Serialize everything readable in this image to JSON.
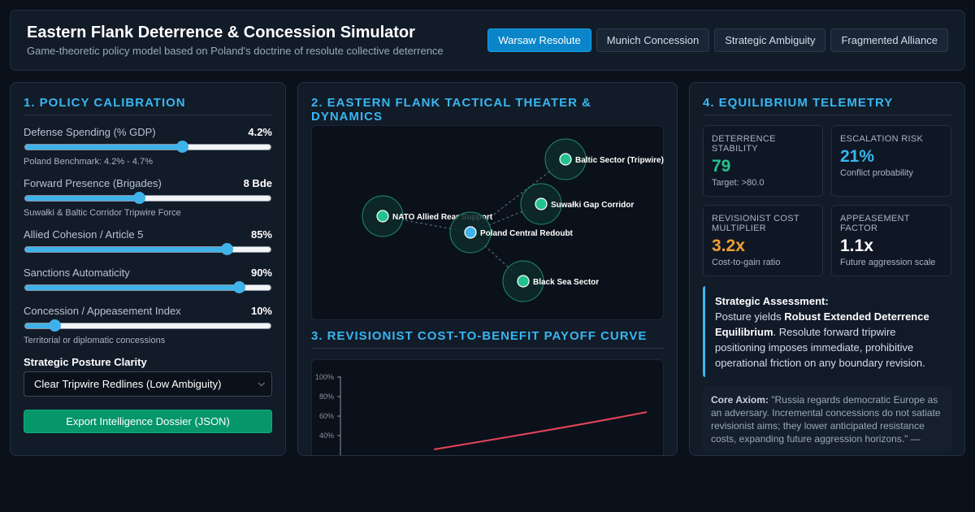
{
  "header": {
    "title": "Eastern Flank Deterrence & Concession Simulator",
    "subtitle": "Game-theoretic policy model based on Poland's doctrine of resolute collective deterrence",
    "scenarios": [
      "Warsaw Resolute",
      "Munich Concession",
      "Strategic Ambiguity",
      "Fragmented Alliance"
    ],
    "active_scenario": "Warsaw Resolute"
  },
  "policy": {
    "title": "1. POLICY CALIBRATION",
    "controls": [
      {
        "label": "Defense Spending (% GDP)",
        "value": "4.2%",
        "level": 0.64,
        "note": "Poland Benchmark: 4.2% - 4.7%"
      },
      {
        "label": "Forward Presence (Brigades)",
        "value": "8 Bde",
        "level": 0.465,
        "note": "Suwałki & Baltic Corridor Tripwire Force"
      },
      {
        "label": "Allied Cohesion / Article 5",
        "value": "85%",
        "level": 0.82,
        "note": ""
      },
      {
        "label": "Sanctions Automaticity",
        "value": "90%",
        "level": 0.87,
        "note": ""
      },
      {
        "label": "Concession / Appeasement Index",
        "value": "10%",
        "level": 0.12,
        "note": "Territorial or diplomatic concessions"
      }
    ],
    "clarity_label": "Strategic Posture Clarity",
    "clarity_selected": "Clear Tripwire Redlines (Low Ambiguity)",
    "export_label": "Export Intelligence Dossier (JSON)"
  },
  "theater": {
    "title": "2. EASTERN FLANK TACTICAL THEATER & DYNAMICS",
    "nodes": [
      {
        "label": "Baltic Sector (Tripwire)",
        "color": "#22c38e"
      },
      {
        "label": "Suwałki Gap Corridor",
        "color": "#22c38e"
      },
      {
        "label": "NATO Allied Rear Support",
        "color": "#22c38e"
      },
      {
        "label": "Poland Central Redoubt",
        "color": "#3fb2ea"
      },
      {
        "label": "Black Sea Sector",
        "color": "#22c38e"
      }
    ]
  },
  "payoff": {
    "title": "3. REVISIONIST COST-TO-BENEFIT PAYOFF CURVE",
    "y_ticks": [
      "100%",
      "80%",
      "60%",
      "40%"
    ],
    "curve_color": "#e8445a"
  },
  "telemetry": {
    "title": "4. EQUILIBRIUM TELEMETRY",
    "cards": [
      {
        "title": "DETERRENCE STABILITY",
        "value": "79",
        "sub": "Target: >80.0",
        "color": "#22c38e"
      },
      {
        "title": "ESCALATION RISK",
        "value": "21%",
        "sub": "Conflict probability",
        "color": "#38b6f0"
      },
      {
        "title": "REVISIONIST COST MULTIPLIER",
        "value": "3.2x",
        "sub": "Cost-to-gain ratio",
        "color": "#f0a030"
      },
      {
        "title": "APPEASEMENT FACTOR",
        "value": "1.1x",
        "sub": "Future aggression scale",
        "color": "#ffffff"
      }
    ],
    "assessment_heading": "Strategic Assessment:",
    "assessment_pre": "Posture yields ",
    "assessment_bold": "Robust Extended Deterrence Equilibrium",
    "assessment_post": ". Resolute forward tripwire positioning imposes immediate, prohibitive operational friction on any boundary revision.",
    "axiom_label": "Core Axiom:",
    "axiom_text": "\"Russia regards democratic Europe as an adversary. Incremental concessions do not satiate revisionist aims; they lower anticipated resistance costs, expanding future aggression horizons.\" —"
  }
}
